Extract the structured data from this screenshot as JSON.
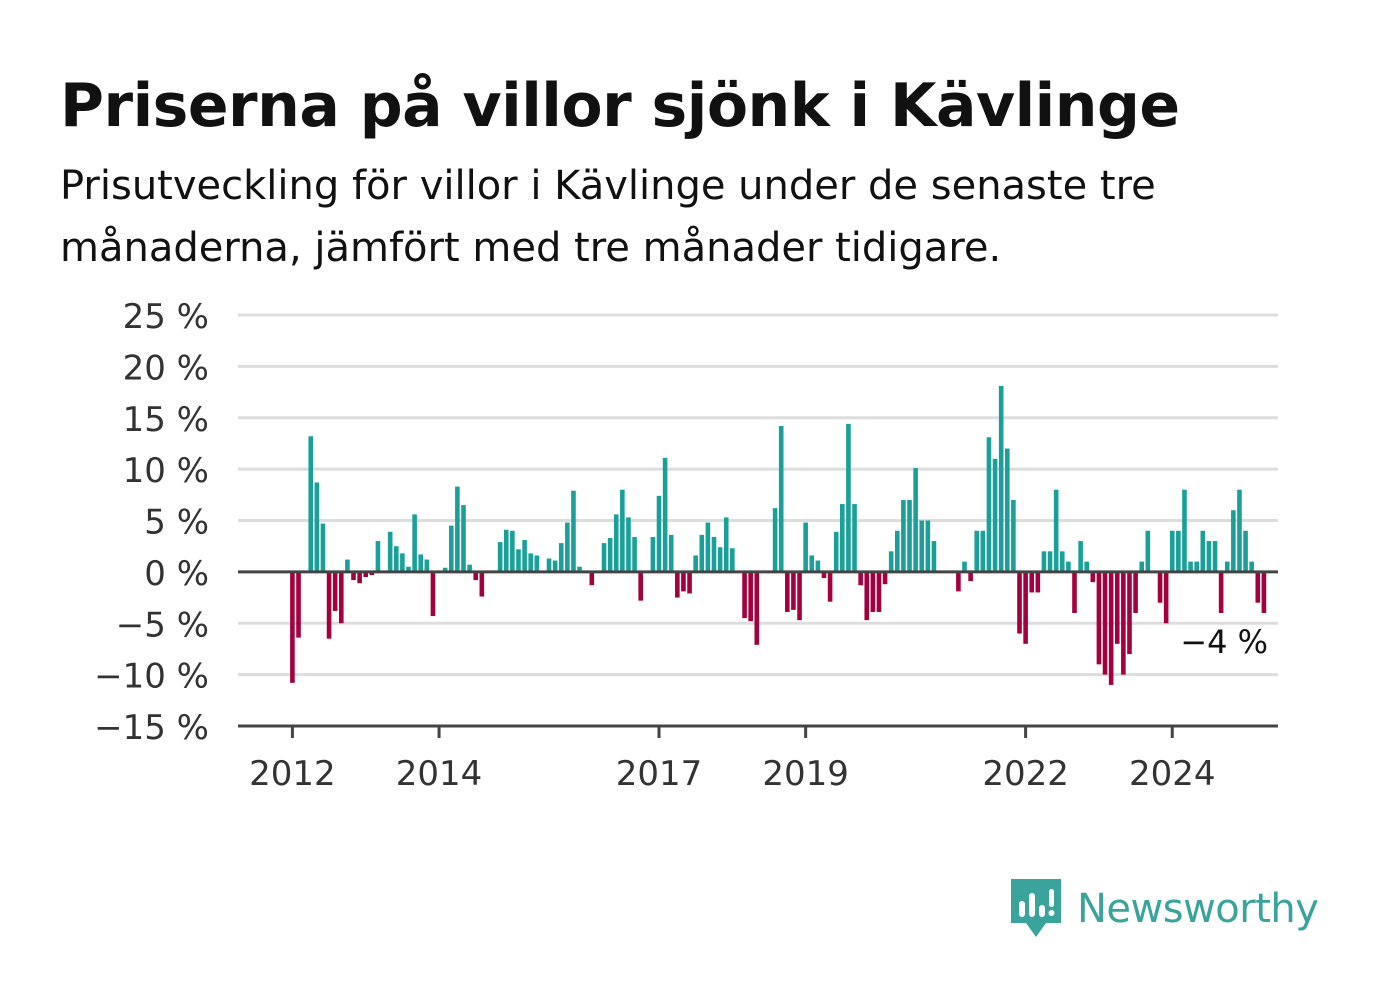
{
  "header": {
    "title": "Priserna på villor sjönk i Kävlinge",
    "subtitle": "Prisutveckling för villor i Kävlinge under de senaste tre månaderna, jämfört med tre månader tidigare."
  },
  "brand": {
    "name": "Newsworthy",
    "color": "#3aa39c",
    "icon": "newsworthy-bar-chart-icon"
  },
  "colors": {
    "positive": "#1ba099",
    "negative": "#a3003f",
    "grid": "#dddddd",
    "axis": "#444444",
    "tick_text": "#333333"
  },
  "chart_data": {
    "type": "bar",
    "title": "Priserna på villor sjönk i Kävlinge",
    "subtitle": "Prisutveckling för villor i Kävlinge under de senaste tre månaderna, jämfört med tre månader tidigare.",
    "xlabel": "",
    "ylabel": "",
    "ylim": [
      -15,
      25
    ],
    "y_ticks": [
      25,
      20,
      15,
      10,
      5,
      0,
      -5,
      -10,
      -15
    ],
    "y_tick_labels": [
      "25 %",
      "20 %",
      "15 %",
      "10 %",
      "5 %",
      "0 %",
      "−5 %",
      "−10 %",
      "−15 %"
    ],
    "x_ticks": [
      "2012",
      "2014",
      "2017",
      "2019",
      "2022",
      "2024"
    ],
    "grid": true,
    "legend": "none",
    "last_value_label": "−4 %",
    "series": [
      {
        "values": [
          0,
          -10.8,
          -6.4,
          0,
          13.2,
          8.7,
          4.7,
          -6.5,
          -3.8,
          -5.0,
          1.2,
          -0.8,
          -1.1,
          -0.5,
          -0.3,
          3.0,
          0,
          3.9,
          2.5,
          1.8,
          0.5,
          5.6,
          1.7,
          1.2,
          -4.3,
          0,
          0.4,
          4.5,
          8.3,
          6.5,
          0.7,
          -0.8,
          -2.4,
          0,
          0,
          2.9,
          4.1,
          4.0,
          2.2,
          3.1,
          1.8,
          1.6,
          0,
          1.3,
          1.1,
          2.8,
          4.8,
          7.9,
          0.5,
          0,
          -1.3,
          0,
          2.8,
          3.3,
          5.6,
          8.0,
          5.3,
          3.4,
          -2.8,
          0,
          3.4,
          7.4,
          11.1,
          3.6,
          -2.5,
          -1.9,
          -2.1,
          1.6,
          3.6,
          4.8,
          3.4,
          2.4,
          5.3,
          2.3,
          0,
          -4.5,
          -4.8,
          -7.1,
          0,
          0,
          6.2,
          14.2,
          -3.9,
          -3.7,
          -4.7,
          4.8,
          1.6,
          1.1,
          -0.6,
          -2.9,
          3.9,
          6.6,
          14.4,
          6.6,
          -1.3,
          -4.7,
          -3.9,
          -3.9,
          -1.2,
          2.0,
          4.0,
          7.0,
          7.0,
          10.1,
          5.0,
          5.0,
          3.0,
          0,
          0,
          0,
          -1.9,
          1.0,
          -0.9,
          4.0,
          4.0,
          13.1,
          11.0,
          18.1,
          12.0,
          7.0,
          -6.0,
          -7.0,
          -2.0,
          -2.0,
          2.0,
          2.0,
          8.0,
          2.0,
          1.0,
          -4.0,
          3.0,
          1.0,
          -1.0,
          -9.0,
          -10.0,
          -11.0,
          -7.0,
          -10.0,
          -8.0,
          -4.0,
          1.0,
          4.0,
          0,
          -3.0,
          -5.0,
          4.0,
          4.0,
          8.0,
          1.0,
          1.0,
          4.0,
          3.0,
          3.0,
          -4.0,
          1.0,
          6.0,
          8.0,
          4.0,
          1.0,
          -3.0,
          -4.0
        ]
      }
    ]
  }
}
